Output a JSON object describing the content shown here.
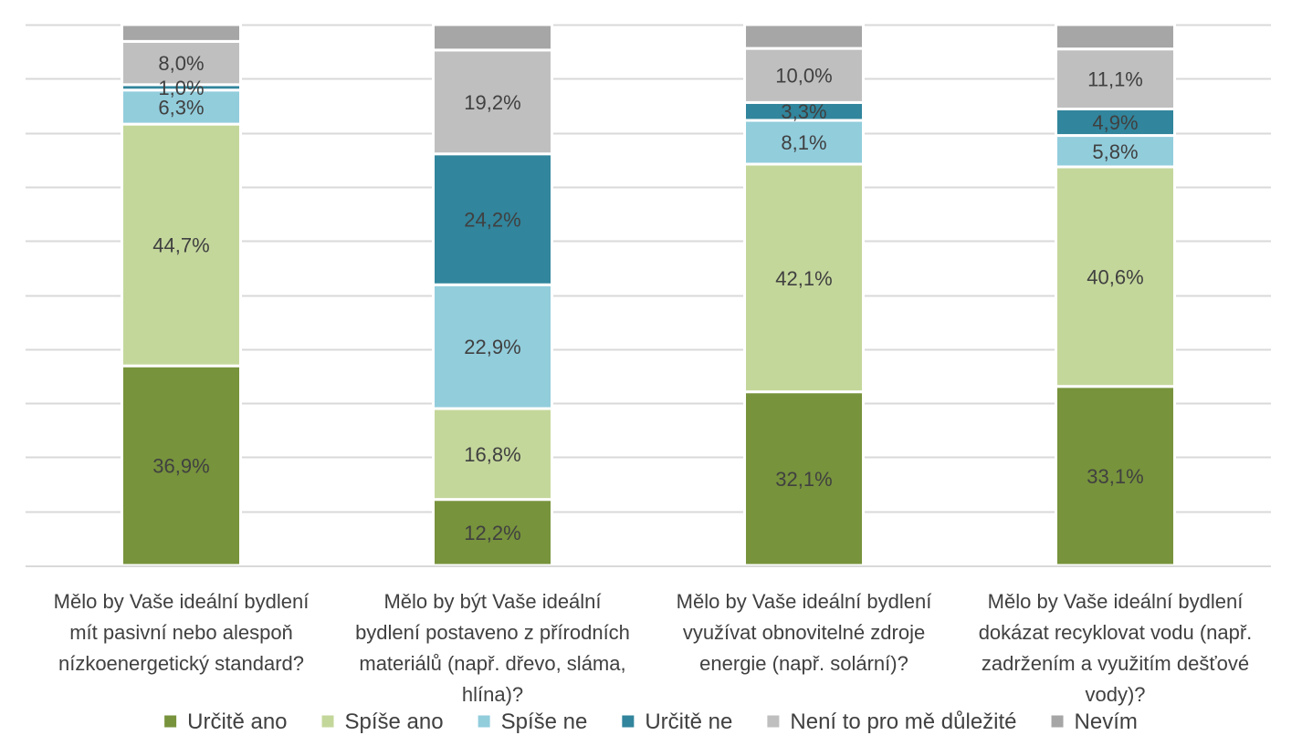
{
  "chart_data": {
    "type": "bar",
    "stacked": true,
    "percent": true,
    "ylim": [
      0,
      100
    ],
    "grid": true,
    "legend_position": "bottom",
    "categories": [
      [
        "Mělo by Vaše ideální bydlení",
        "mít pasivní nebo alespoň",
        "nízkoenergetický standard?"
      ],
      [
        "Mělo by být Vaše ideální",
        "bydlení postaveno z přírodních",
        "materiálů (např. dřevo, sláma,",
        "hlína)?"
      ],
      [
        "Mělo by Vaše ideální bydlení",
        "využívat obnovitelné zdroje",
        "energie (např. solární)?"
      ],
      [
        "Mělo by Vaše ideální bydlení",
        "dokázat recyklovat vodu (např.",
        "zadržením a využitím dešťové",
        "vody)?"
      ]
    ],
    "series": [
      {
        "name": "Určitě ano",
        "color": "#77933c",
        "values": [
          36.9,
          12.2,
          32.1,
          33.1
        ],
        "labels": [
          "36,9%",
          "12,2%",
          "32,1%",
          "33,1%"
        ]
      },
      {
        "name": "Spíše ano",
        "color": "#c4d79b",
        "values": [
          44.7,
          16.8,
          42.1,
          40.6
        ],
        "labels": [
          "44,7%",
          "16,8%",
          "42,1%",
          "40,6%"
        ]
      },
      {
        "name": "Spíše ne",
        "color": "#92cddc",
        "values": [
          6.3,
          22.9,
          8.1,
          5.8
        ],
        "labels": [
          "6,3%",
          "22,9%",
          "8,1%",
          "5,8%"
        ]
      },
      {
        "name": "Určitě ne",
        "color": "#31859c",
        "values": [
          1.0,
          24.2,
          3.3,
          4.9
        ],
        "labels": [
          "1,0%",
          "24,2%",
          "3,3%",
          "4,9%"
        ]
      },
      {
        "name": "Není to pro mě důležité",
        "color": "#bfbfbf",
        "values": [
          8.0,
          19.2,
          10.0,
          11.1
        ],
        "labels": [
          "8,0%",
          "19,2%",
          "10,0%",
          "11,1%"
        ]
      },
      {
        "name": "Nevím",
        "color": "#a6a6a6",
        "values": [
          3.1,
          4.7,
          4.4,
          4.5
        ],
        "labels": [
          "",
          "",
          "",
          ""
        ]
      }
    ]
  }
}
